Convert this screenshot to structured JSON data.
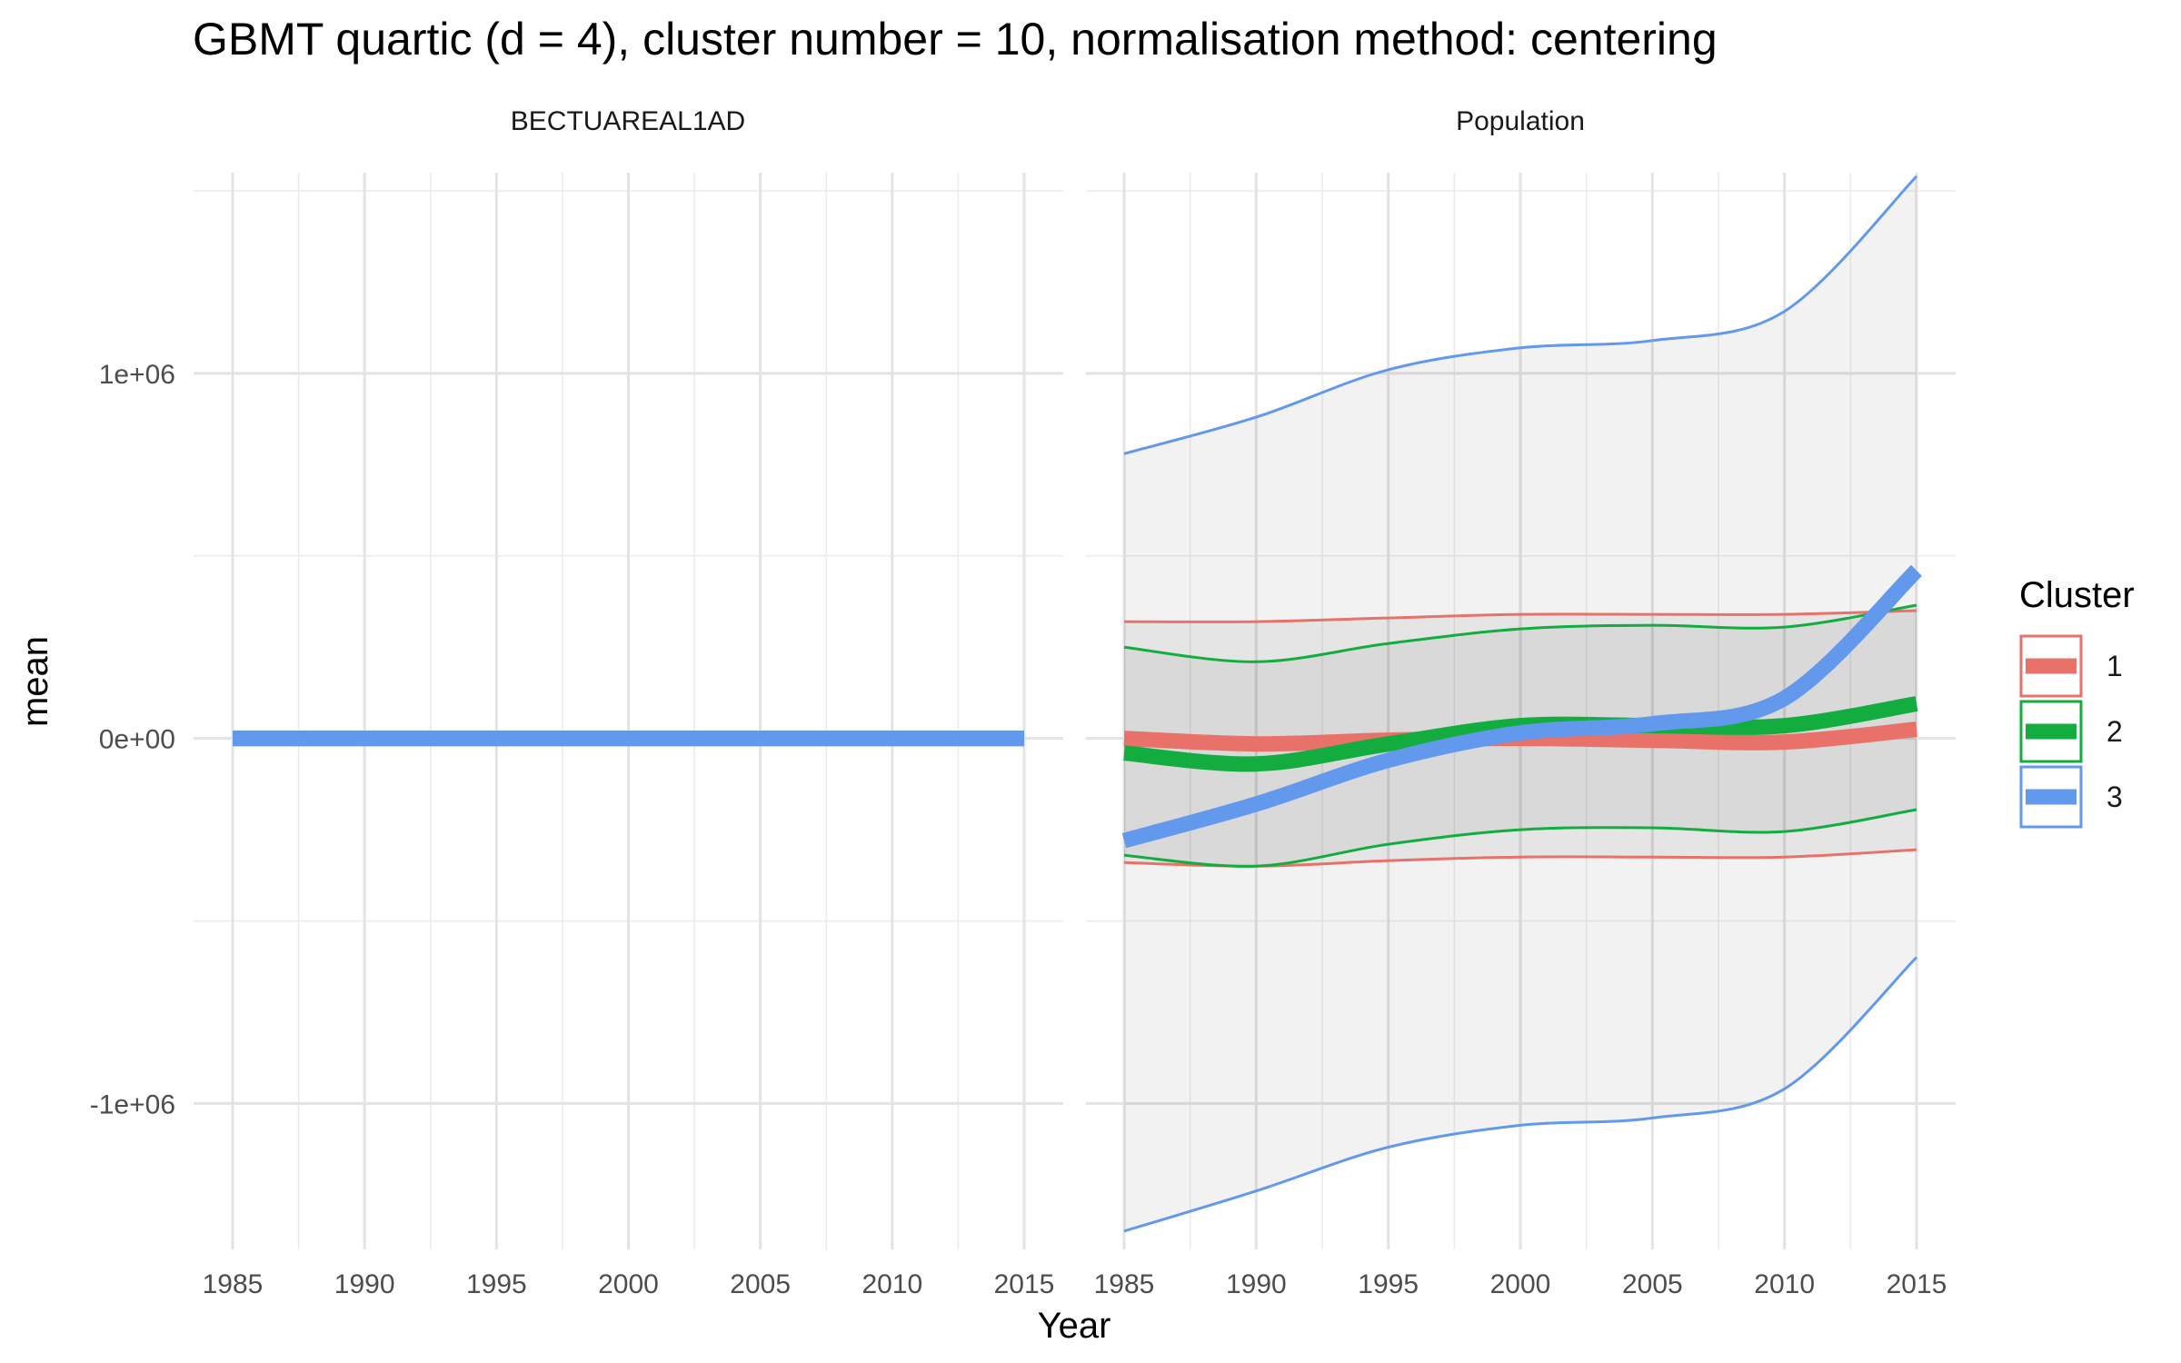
{
  "chart_data": {
    "type": "line",
    "title": "GBMT quartic (d = 4), cluster number = 10, normalisation method: centering",
    "xlabel": "Year",
    "ylabel": "mean",
    "xlim": [
      1985,
      2015
    ],
    "ylim": [
      -1400000,
      1550000
    ],
    "x_ticks": [
      1985,
      1990,
      1995,
      2000,
      2005,
      2010,
      2015
    ],
    "x_tick_labels": [
      "1985",
      "1990",
      "1995",
      "2000",
      "2005",
      "2010",
      "2015"
    ],
    "y_ticks": [
      -1000000,
      0,
      1000000
    ],
    "y_tick_labels": [
      "-1e+06",
      "0e+00",
      "1e+06"
    ],
    "grid": true,
    "legend": {
      "title": "Cluster",
      "position": "right",
      "entries": [
        {
          "label": "1",
          "color": "#E8726A"
        },
        {
          "label": "2",
          "color": "#13AD3F"
        },
        {
          "label": "3",
          "color": "#6299EC"
        }
      ]
    },
    "panels": [
      {
        "title": "BECTUAREAL1AD",
        "x": [
          1985,
          1990,
          1995,
          2000,
          2005,
          2010,
          2015
        ],
        "series": [
          {
            "name": "1",
            "color": "#E8726A",
            "mean": [
              0,
              0,
              0,
              0,
              0,
              0,
              0
            ]
          },
          {
            "name": "2",
            "color": "#13AD3F",
            "mean": [
              0,
              0,
              0,
              0,
              0,
              0,
              0
            ]
          },
          {
            "name": "3",
            "color": "#6299EC",
            "mean": [
              0,
              0,
              0,
              0,
              0,
              0,
              0
            ]
          }
        ]
      },
      {
        "title": "Population",
        "x": [
          1985,
          1990,
          1995,
          2000,
          2005,
          2010,
          2015
        ],
        "series": [
          {
            "name": "1",
            "color": "#E8726A",
            "mean": [
              0,
              -15000,
              -5000,
              0,
              -5000,
              -10000,
              25000
            ],
            "upper": [
              320000,
              320000,
              330000,
              340000,
              340000,
              340000,
              350000
            ],
            "lower": [
              -340000,
              -350000,
              -335000,
              -325000,
              -325000,
              -325000,
              -305000
            ]
          },
          {
            "name": "2",
            "color": "#13AD3F",
            "mean": [
              -40000,
              -70000,
              -15000,
              35000,
              35000,
              35000,
              95000
            ],
            "upper": [
              250000,
              210000,
              260000,
              300000,
              310000,
              305000,
              365000
            ],
            "lower": [
              -320000,
              -350000,
              -290000,
              -250000,
              -245000,
              -255000,
              -195000
            ]
          },
          {
            "name": "3",
            "color": "#6299EC",
            "mean": [
              -280000,
              -180000,
              -60000,
              15000,
              40000,
              110000,
              460000
            ],
            "upper": [
              780000,
              880000,
              1010000,
              1070000,
              1090000,
              1170000,
              1540000
            ],
            "lower": [
              -1350000,
              -1240000,
              -1120000,
              -1060000,
              -1040000,
              -960000,
              -600000
            ]
          }
        ]
      }
    ]
  }
}
